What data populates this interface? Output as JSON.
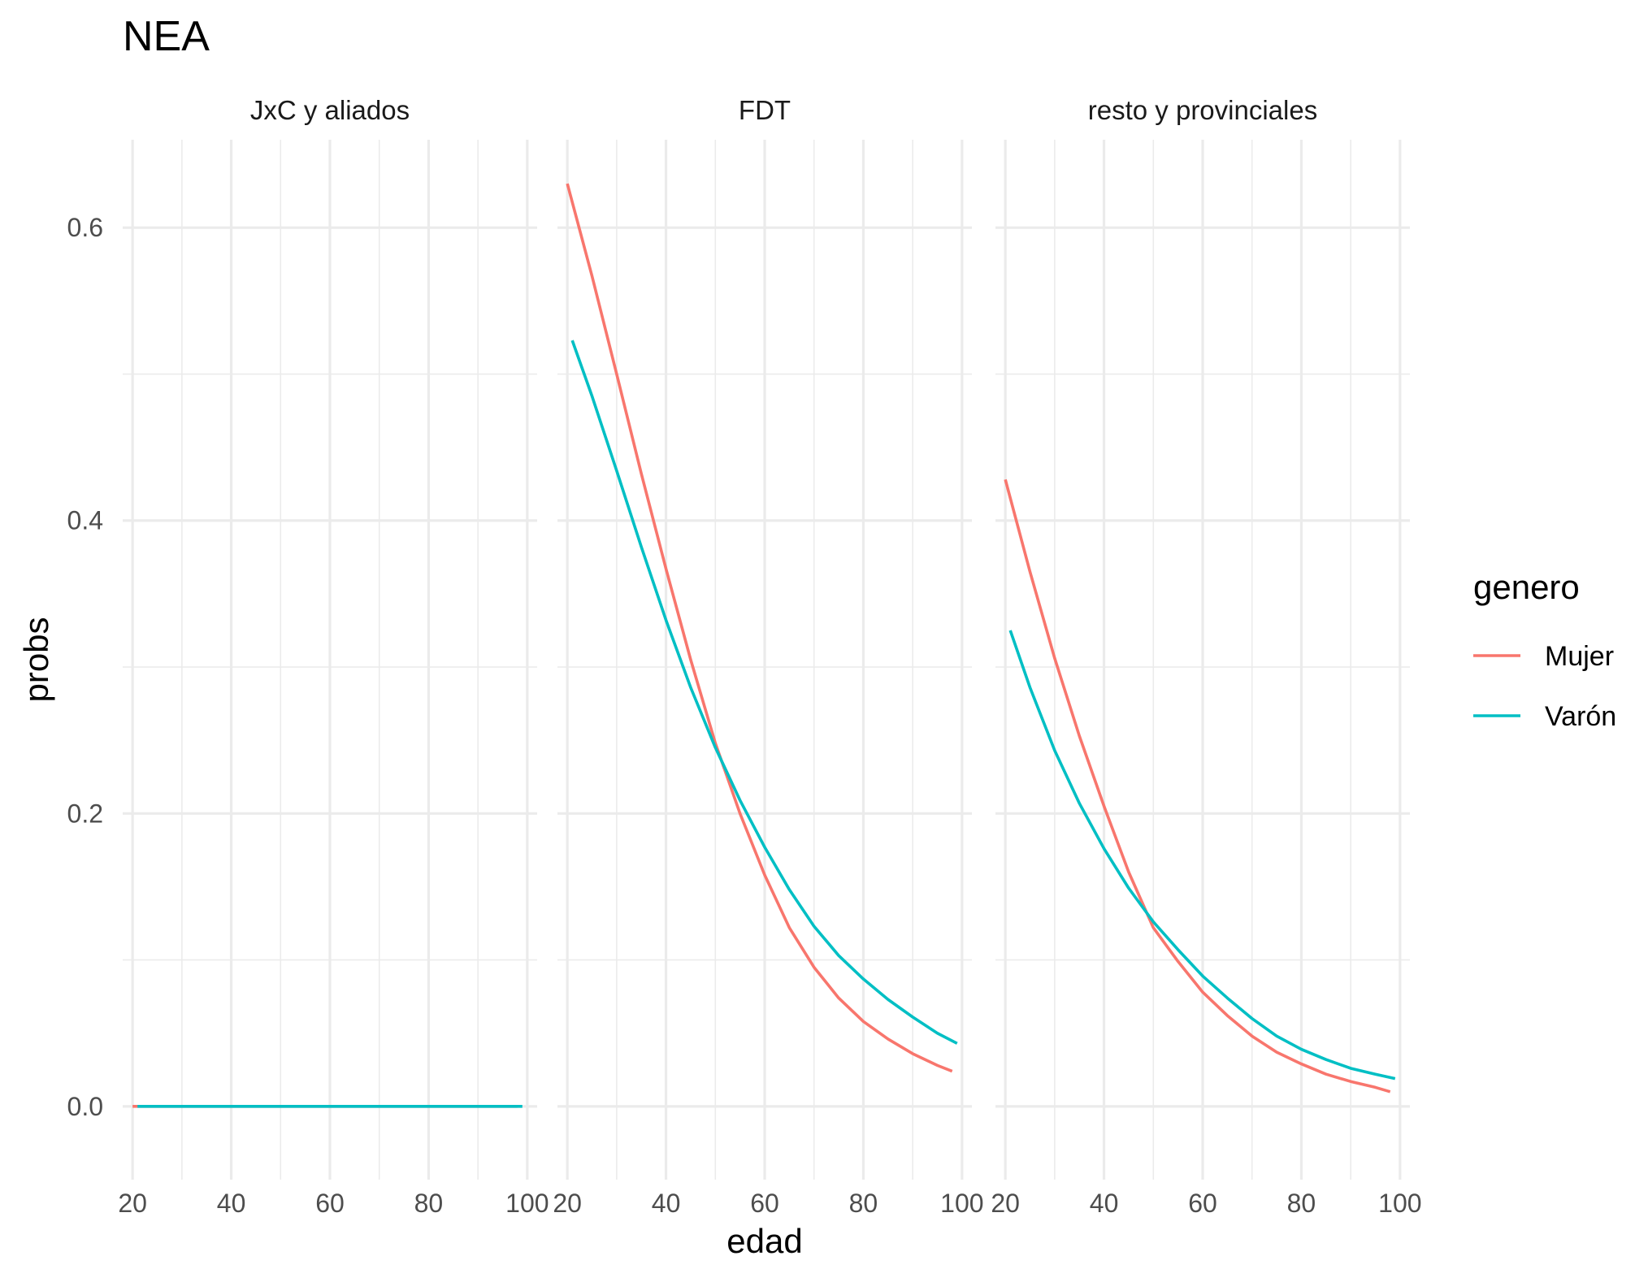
{
  "chart_data": {
    "type": "line",
    "title": "NEA",
    "xlabel": "edad",
    "ylabel": "probs",
    "xlim": [
      18,
      102
    ],
    "ylim": [
      -0.05,
      0.66
    ],
    "x_ticks": [
      20,
      40,
      60,
      80,
      100
    ],
    "y_ticks": [
      0.0,
      0.2,
      0.4,
      0.6
    ],
    "x_tick_labels": [
      "20",
      "40",
      "60",
      "80",
      "100"
    ],
    "y_tick_labels": [
      "0.0",
      "0.2",
      "0.4",
      "0.6"
    ],
    "grid": true,
    "legend": {
      "title": "genero",
      "position": "right",
      "entries": [
        {
          "name": "Mujer",
          "color": "#F8766D"
        },
        {
          "name": "Varón",
          "color": "#00BFC4"
        }
      ]
    },
    "facets": [
      {
        "label": "JxC y aliados",
        "series": [
          {
            "name": "Mujer",
            "color": "#F8766D",
            "x": [
              20,
              98
            ],
            "y": [
              0.0,
              0.0
            ]
          },
          {
            "name": "Varón",
            "color": "#00BFC4",
            "x": [
              21,
              99
            ],
            "y": [
              0.0,
              0.0
            ]
          }
        ]
      },
      {
        "label": "FDT",
        "series": [
          {
            "name": "Mujer",
            "color": "#F8766D",
            "x": [
              20,
              25,
              30,
              35,
              40,
              45,
              50,
              55,
              60,
              65,
              70,
              75,
              80,
              85,
              90,
              95,
              98
            ],
            "y": [
              0.63,
              0.567,
              0.5,
              0.432,
              0.367,
              0.305,
              0.248,
              0.2,
              0.158,
              0.122,
              0.095,
              0.074,
              0.058,
              0.046,
              0.036,
              0.028,
              0.024
            ]
          },
          {
            "name": "Varón",
            "color": "#00BFC4",
            "x": [
              21,
              25,
              30,
              35,
              40,
              45,
              50,
              55,
              60,
              65,
              70,
              75,
              80,
              85,
              90,
              95,
              99
            ],
            "y": [
              0.523,
              0.485,
              0.434,
              0.382,
              0.332,
              0.286,
              0.245,
              0.209,
              0.177,
              0.148,
              0.123,
              0.103,
              0.087,
              0.073,
              0.061,
              0.05,
              0.043
            ]
          }
        ]
      },
      {
        "label": "resto y provinciales",
        "series": [
          {
            "name": "Mujer",
            "color": "#F8766D",
            "x": [
              20,
              25,
              30,
              35,
              40,
              45,
              50,
              55,
              60,
              65,
              70,
              75,
              80,
              85,
              90,
              95,
              98
            ],
            "y": [
              0.428,
              0.365,
              0.306,
              0.253,
              0.205,
              0.16,
              0.122,
              0.099,
              0.078,
              0.062,
              0.048,
              0.037,
              0.029,
              0.022,
              0.017,
              0.013,
              0.01
            ]
          },
          {
            "name": "Varón",
            "color": "#00BFC4",
            "x": [
              21,
              25,
              30,
              35,
              40,
              45,
              50,
              55,
              60,
              65,
              70,
              75,
              80,
              85,
              90,
              95,
              99
            ],
            "y": [
              0.325,
              0.286,
              0.243,
              0.207,
              0.176,
              0.149,
              0.126,
              0.107,
              0.089,
              0.074,
              0.06,
              0.048,
              0.039,
              0.032,
              0.026,
              0.022,
              0.019
            ]
          }
        ]
      }
    ]
  }
}
